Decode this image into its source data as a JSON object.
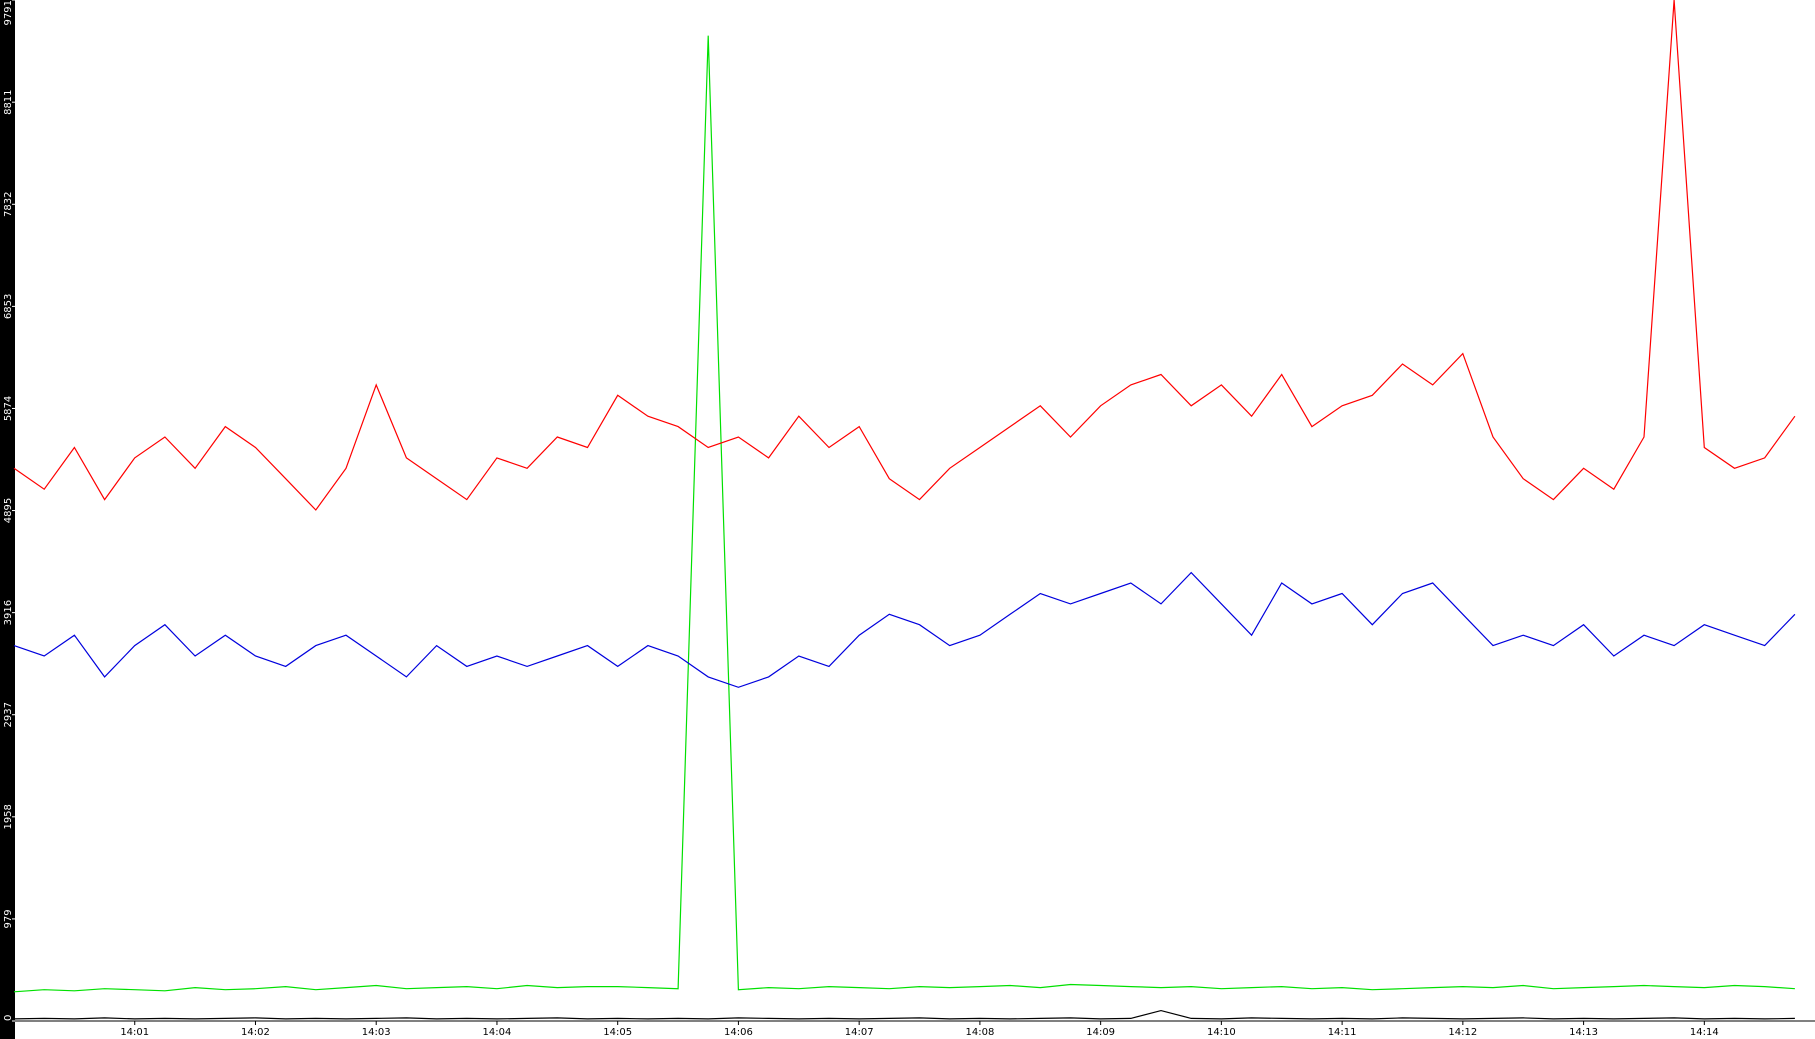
{
  "chart_data": {
    "type": "line",
    "x": [
      "14:00:00",
      "14:00:15",
      "14:00:30",
      "14:00:45",
      "14:01:00",
      "14:01:15",
      "14:01:30",
      "14:01:45",
      "14:02:00",
      "14:02:15",
      "14:02:30",
      "14:02:45",
      "14:03:00",
      "14:03:15",
      "14:03:30",
      "14:03:45",
      "14:04:00",
      "14:04:15",
      "14:04:30",
      "14:04:45",
      "14:05:00",
      "14:05:15",
      "14:05:30",
      "14:05:45",
      "14:06:00",
      "14:06:15",
      "14:06:30",
      "14:06:45",
      "14:07:00",
      "14:07:15",
      "14:07:30",
      "14:07:45",
      "14:08:00",
      "14:08:15",
      "14:08:30",
      "14:08:45",
      "14:09:00",
      "14:09:15",
      "14:09:30",
      "14:09:45",
      "14:10:00",
      "14:10:15",
      "14:10:30",
      "14:10:45",
      "14:11:00",
      "14:11:15",
      "14:11:30",
      "14:11:45",
      "14:12:00",
      "14:12:15",
      "14:12:30",
      "14:12:45",
      "14:13:00",
      "14:13:15",
      "14:13:30",
      "14:13:45",
      "14:14:00",
      "14:14:15",
      "14:14:30",
      "14:14:45"
    ],
    "series": [
      {
        "color": "#00e000",
        "values": [
          280,
          300,
          290,
          310,
          300,
          290,
          320,
          300,
          310,
          330,
          300,
          320,
          340,
          310,
          320,
          330,
          310,
          340,
          320,
          330,
          330,
          320,
          310,
          9450,
          300,
          320,
          310,
          330,
          320,
          310,
          330,
          320,
          330,
          340,
          320,
          350,
          340,
          330,
          320,
          330,
          310,
          320,
          330,
          310,
          320,
          300,
          310,
          320,
          330,
          320,
          340,
          310,
          320,
          330,
          340,
          330,
          320,
          340,
          330,
          310
        ]
      },
      {
        "color": "#ff0000",
        "values": [
          5300,
          5100,
          5500,
          5000,
          5400,
          5600,
          5300,
          5700,
          5500,
          5200,
          4900,
          5300,
          6100,
          5400,
          5200,
          5000,
          5400,
          5300,
          5600,
          5500,
          6000,
          5800,
          5700,
          5500,
          5600,
          5400,
          5800,
          5500,
          5700,
          5200,
          5000,
          5300,
          5500,
          5700,
          5900,
          5600,
          5900,
          6100,
          6200,
          5900,
          6100,
          5800,
          6200,
          5700,
          5900,
          6000,
          6300,
          6100,
          6400,
          5600,
          5200,
          5000,
          5300,
          5100,
          5600,
          9791,
          5500,
          5300,
          5400,
          5800
        ]
      },
      {
        "color": "#0000dd",
        "values": [
          3600,
          3500,
          3700,
          3300,
          3600,
          3800,
          3500,
          3700,
          3500,
          3400,
          3600,
          3700,
          3500,
          3300,
          3600,
          3400,
          3500,
          3400,
          3500,
          3600,
          3400,
          3600,
          3500,
          3300,
          3200,
          3300,
          3500,
          3400,
          3700,
          3900,
          3800,
          3600,
          3700,
          3900,
          4100,
          4000,
          4100,
          4200,
          4000,
          4300,
          4000,
          3700,
          4200,
          4000,
          4100,
          3800,
          4100,
          4200,
          3900,
          3600,
          3700,
          3600,
          3800,
          3500,
          3700,
          3600,
          3800,
          3700,
          3600,
          3900
        ]
      },
      {
        "color": "#000000",
        "values": [
          20,
          25,
          20,
          30,
          20,
          25,
          20,
          25,
          30,
          20,
          25,
          20,
          25,
          30,
          20,
          25,
          20,
          25,
          30,
          20,
          25,
          20,
          25,
          20,
          30,
          25,
          20,
          25,
          20,
          25,
          30,
          20,
          25,
          20,
          25,
          30,
          20,
          25,
          100,
          25,
          20,
          30,
          25,
          20,
          25,
          20,
          30,
          25,
          20,
          25,
          30,
          20,
          25,
          20,
          25,
          30,
          20,
          25,
          20,
          25
        ]
      }
    ],
    "xlim": [
      "14:00:00",
      "14:14:55"
    ],
    "xticks": [
      "14:01",
      "14:02",
      "14:03",
      "14:04",
      "14:05",
      "14:06",
      "14:07",
      "14:08",
      "14:09",
      "14:10",
      "14:11",
      "14:12",
      "14:13",
      "14:14"
    ],
    "ylim": [
      0,
      9791
    ],
    "yticks": [
      0,
      979,
      1958,
      2937,
      3916,
      4895,
      5874,
      6853,
      7832,
      8811,
      9791
    ]
  }
}
